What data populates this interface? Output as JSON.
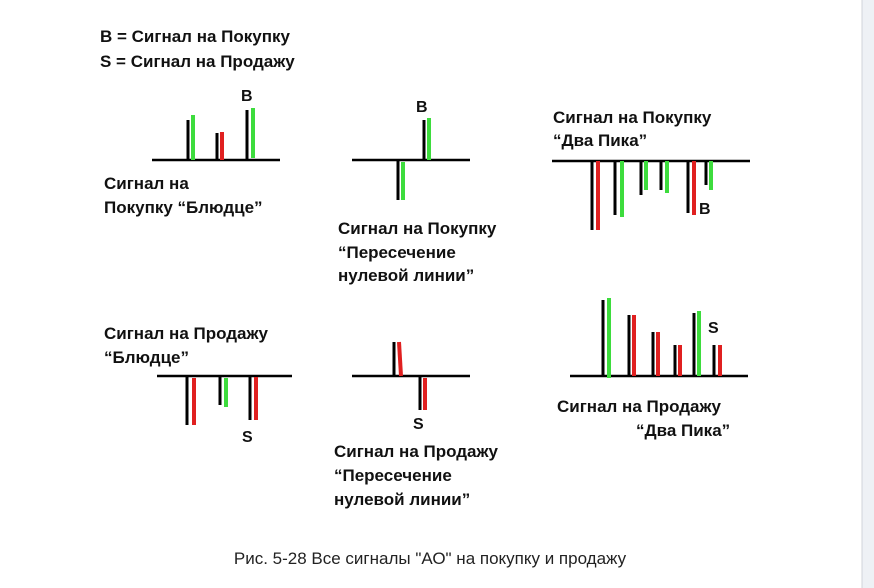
{
  "legend": [
    "B = Сигнал на Покупку",
    "S = Сигнал на Продажу"
  ],
  "panels": [
    {
      "title": [
        "Сигнал на",
        "Покупку “Блюдце”"
      ],
      "marker": "B"
    },
    {
      "title": [
        "Сигнал на Покупку",
        "“Пересечение",
        "нулевой линии”"
      ],
      "marker": "B"
    },
    {
      "title": [
        "Сигнал на Покупку",
        "“Два Пика”"
      ],
      "marker": "B"
    },
    {
      "title": [
        "Сигнал на Продажу",
        "“Блюдце”"
      ],
      "marker": "S"
    },
    {
      "title": [
        "Сигнал на Продажу",
        "“Пересечение",
        "нулевой линии”"
      ],
      "marker": "S"
    },
    {
      "title": [
        "Сигнал на Продажу",
        "“Два Пика”"
      ],
      "marker": "S"
    }
  ],
  "caption": "Рис. 5-28 Все сигналы \"АО\" на покупку и продажу"
}
